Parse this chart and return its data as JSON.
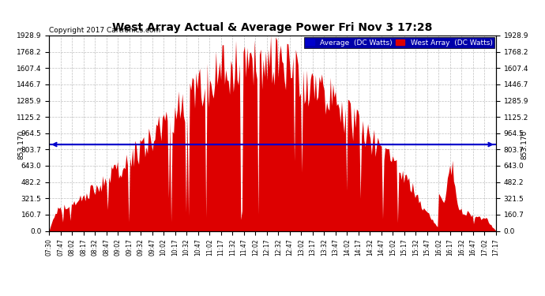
{
  "title": "West Array Actual & Average Power Fri Nov 3 17:28",
  "copyright": "Copyright 2017 Cartronics.com",
  "legend_avg": "Average  (DC Watts)",
  "legend_west": "West Array  (DC Watts)",
  "average_value": 853.17,
  "y_tick_labels": [
    "0.0",
    "160.7",
    "321.5",
    "482.2",
    "643.0",
    "803.7",
    "964.5",
    "1125.2",
    "1285.9",
    "1446.7",
    "1607.4",
    "1768.2",
    "1928.9"
  ],
  "y_tick_values": [
    0.0,
    160.7,
    321.5,
    482.2,
    643.0,
    803.7,
    964.5,
    1125.2,
    1285.9,
    1446.7,
    1607.4,
    1768.2,
    1928.9
  ],
  "ymax": 1928.9,
  "bg_color": "#ffffff",
  "fill_color": "#dd0000",
  "avg_line_color": "#0000cc",
  "grid_color": "#b0b0b0",
  "title_color": "#000000",
  "copyright_color": "#000000",
  "x_tick_labels": [
    "07:30",
    "07:47",
    "08:02",
    "08:17",
    "08:32",
    "08:47",
    "09:02",
    "09:17",
    "09:32",
    "09:47",
    "10:02",
    "10:17",
    "10:32",
    "10:47",
    "11:02",
    "11:17",
    "11:32",
    "11:47",
    "12:02",
    "12:17",
    "12:32",
    "12:47",
    "13:02",
    "13:17",
    "13:32",
    "13:47",
    "14:02",
    "14:17",
    "14:32",
    "14:47",
    "15:02",
    "15:17",
    "15:32",
    "15:47",
    "16:02",
    "16:17",
    "16:32",
    "16:47",
    "17:02",
    "17:17"
  ],
  "legend_bg": "#0000aa",
  "legend_text_color": "#ffffff"
}
